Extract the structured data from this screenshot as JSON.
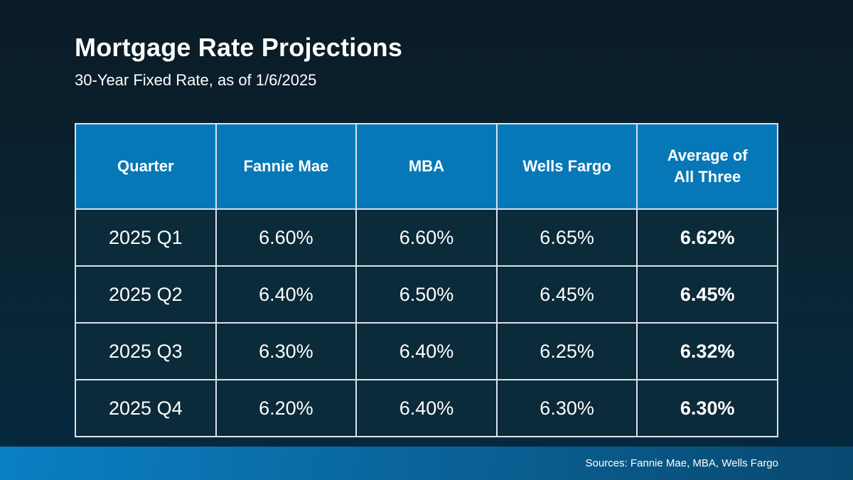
{
  "slide": {
    "title": "Mortgage Rate Projections",
    "subtitle": "30-Year Fixed Rate, as of 1/6/2025"
  },
  "table": {
    "headers": [
      "Quarter",
      "Fannie Mae",
      "MBA",
      "Wells Fargo",
      "Average of All Three"
    ],
    "rows": [
      {
        "quarter": "2025 Q1",
        "fannie_mae": "6.60%",
        "mba": "6.60%",
        "wells_fargo": "6.65%",
        "average": "6.62%"
      },
      {
        "quarter": "2025 Q2",
        "fannie_mae": "6.40%",
        "mba": "6.50%",
        "wells_fargo": "6.45%",
        "average": "6.45%"
      },
      {
        "quarter": "2025 Q3",
        "fannie_mae": "6.30%",
        "mba": "6.40%",
        "wells_fargo": "6.25%",
        "average": "6.32%"
      },
      {
        "quarter": "2025 Q4",
        "fannie_mae": "6.20%",
        "mba": "6.40%",
        "wells_fargo": "6.30%",
        "average": "6.30%"
      }
    ]
  },
  "footer": {
    "sources": "Sources: Fannie Mae, MBA, Wells Fargo"
  },
  "colors": {
    "background_top": "#0a1b25",
    "background_mid": "#0a2636",
    "background_bottom": "#05293f",
    "header_bg": "#0778b7",
    "row_bg": "#0b2a3a",
    "border": "#d9e2ec",
    "footer_gradient_start": "#0a80c4",
    "footer_gradient_end": "#09486f"
  },
  "chart_data": {
    "type": "table",
    "title": "Mortgage Rate Projections",
    "subtitle": "30-Year Fixed Rate, as of 1/6/2025",
    "unit": "%",
    "categories": [
      "2025 Q1",
      "2025 Q2",
      "2025 Q3",
      "2025 Q4"
    ],
    "series": [
      {
        "name": "Fannie Mae",
        "values": [
          6.6,
          6.4,
          6.3,
          6.2
        ]
      },
      {
        "name": "MBA",
        "values": [
          6.6,
          6.5,
          6.4,
          6.4
        ]
      },
      {
        "name": "Wells Fargo",
        "values": [
          6.65,
          6.45,
          6.25,
          6.3
        ]
      },
      {
        "name": "Average of All Three",
        "values": [
          6.62,
          6.45,
          6.32,
          6.3
        ]
      }
    ],
    "source_note": "Sources: Fannie Mae, MBA, Wells Fargo"
  }
}
